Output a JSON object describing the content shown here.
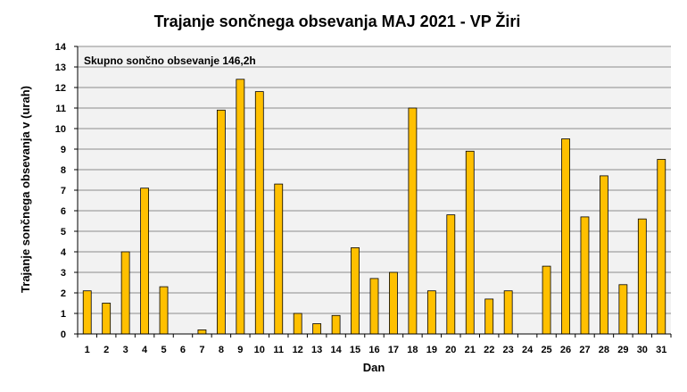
{
  "chart_data": {
    "type": "bar",
    "title": "Trajanje  sončnega  obsevanja  MAJ 2021 - VP Žiri",
    "xlabel": "Dan",
    "ylabel": "Trajanje  sončnega obsevanja  v (urah)",
    "annotation": "Skupno sončno obsevanje 146,2h",
    "categories": [
      "1",
      "2",
      "3",
      "4",
      "5",
      "6",
      "7",
      "8",
      "9",
      "10",
      "11",
      "12",
      "13",
      "14",
      "15",
      "16",
      "17",
      "18",
      "19",
      "20",
      "21",
      "22",
      "23",
      "24",
      "25",
      "26",
      "27",
      "28",
      "29",
      "30",
      "31"
    ],
    "values": [
      2.1,
      1.5,
      4.0,
      7.1,
      2.3,
      0,
      0.2,
      10.9,
      12.4,
      11.8,
      7.3,
      1.0,
      0.5,
      0.9,
      4.2,
      2.7,
      3.0,
      11.0,
      2.1,
      5.8,
      8.9,
      1.7,
      2.1,
      0,
      3.3,
      9.5,
      5.7,
      7.7,
      2.4,
      5.6,
      8.5
    ],
    "ylim": [
      0,
      14
    ],
    "yticks": [
      "0",
      "1",
      "2",
      "3",
      "4",
      "5",
      "6",
      "7",
      "8",
      "9",
      "10",
      "11",
      "12",
      "13",
      "14"
    ],
    "grid": true,
    "colors": {
      "bar_fill": "#FFC000",
      "bar_stroke": "#000000",
      "plot_background": "#F2F2F2",
      "gridline": "#8C8C8C"
    }
  }
}
